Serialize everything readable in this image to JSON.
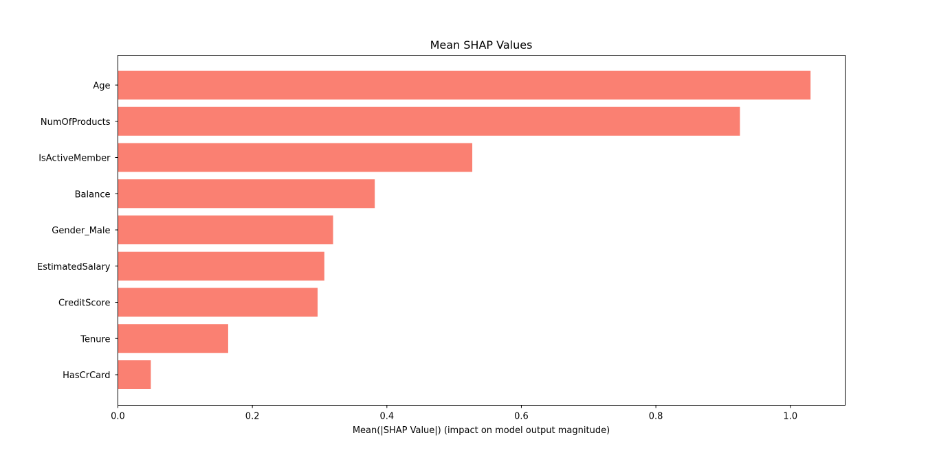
{
  "chart_data": {
    "type": "bar",
    "orientation": "horizontal",
    "title": "Mean SHAP Values",
    "xlabel": "Mean(|SHAP Value|) (impact on model output magnitude)",
    "ylabel": "",
    "categories": [
      "Age",
      "NumOfProducts",
      "IsActiveMember",
      "Balance",
      "Gender_Male",
      "EstimatedSalary",
      "CreditScore",
      "Tenure",
      "HasCrCard"
    ],
    "values": [
      1.03,
      0.925,
      0.527,
      0.382,
      0.32,
      0.307,
      0.297,
      0.164,
      0.049
    ],
    "xlim": [
      0,
      1.0815
    ],
    "xticks": [
      {
        "value": 0.0,
        "label": "0.0"
      },
      {
        "value": 0.2,
        "label": "0.2"
      },
      {
        "value": 0.4,
        "label": "0.4"
      },
      {
        "value": 0.6,
        "label": "0.6"
      },
      {
        "value": 0.8,
        "label": "0.8"
      },
      {
        "value": 1.0,
        "label": "1.0"
      }
    ],
    "bar_color": "#fa8072",
    "grid": false,
    "legend": "none"
  }
}
